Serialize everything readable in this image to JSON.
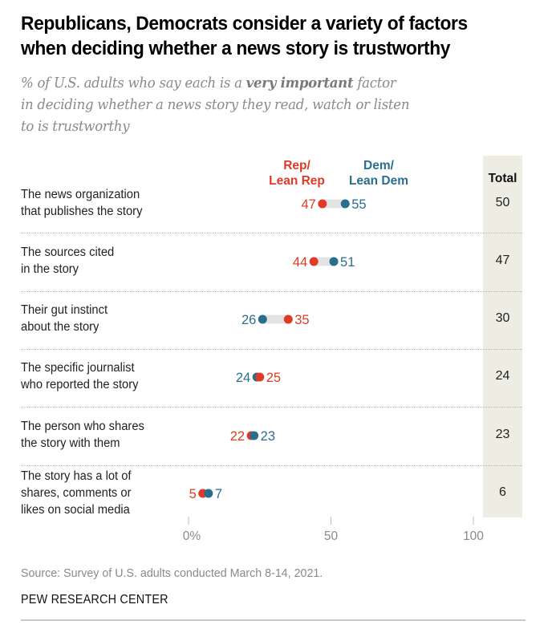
{
  "header": {
    "title_line1": "Republicans, Democrats consider a variety of factors",
    "title_line2": "when deciding whether a news story is trustworthy",
    "subtitle_pre": "% of U.S. adults who say each is a ",
    "subtitle_bold": "very important",
    "subtitle_post1": " factor",
    "subtitle_line2": "in deciding whether a news story they read, watch or listen",
    "subtitle_line3": "to is trustworthy"
  },
  "legend": {
    "rep_line1": "Rep/",
    "rep_line2": "Lean Rep",
    "dem_line1": "Dem/",
    "dem_line2": "Lean Dem",
    "total_header": "Total"
  },
  "colors": {
    "rep": "#e03a27",
    "dem": "#2a6e8f",
    "connector": "#e3e3e3",
    "total_bg": "#eeede4"
  },
  "chart_data": {
    "type": "dot",
    "title": "Republicans, Democrats consider a variety of factors when deciding whether a news story is trustworthy",
    "subtitle": "% of U.S. adults who say each is a very important factor in deciding whether a news story they read, watch or listen to is trustworthy",
    "xlabel": "",
    "ylabel": "",
    "xlim": [
      0,
      100
    ],
    "x_ticks": [
      0,
      50,
      100
    ],
    "x_tick_labels": [
      "0%",
      "50",
      "100"
    ],
    "grid": false,
    "legend_placement": "top",
    "categories": [
      {
        "line1": "The news organization",
        "line2": "that publishes the story",
        "line3": ""
      },
      {
        "line1": "The sources cited",
        "line2": "in the story",
        "line3": ""
      },
      {
        "line1": "Their gut instinct",
        "line2": "about the story",
        "line3": ""
      },
      {
        "line1": "The specific journalist",
        "line2": "who reported the story",
        "line3": ""
      },
      {
        "line1": "The person who shares",
        "line2": "the story with them",
        "line3": ""
      },
      {
        "line1": "The story has a lot of",
        "line2": "shares, comments or",
        "line3": "likes on social media"
      }
    ],
    "series": [
      {
        "name": "Rep/Lean Rep",
        "values": [
          47,
          44,
          35,
          25,
          22,
          5
        ]
      },
      {
        "name": "Dem/Lean Dem",
        "values": [
          55,
          51,
          26,
          24,
          23,
          7
        ]
      }
    ],
    "total": {
      "name": "Total",
      "values": [
        50,
        47,
        30,
        24,
        23,
        6
      ]
    }
  },
  "footer": {
    "source": "Source: Survey of U.S. adults conducted March 8-14, 2021.",
    "brand": "PEW RESEARCH CENTER"
  }
}
